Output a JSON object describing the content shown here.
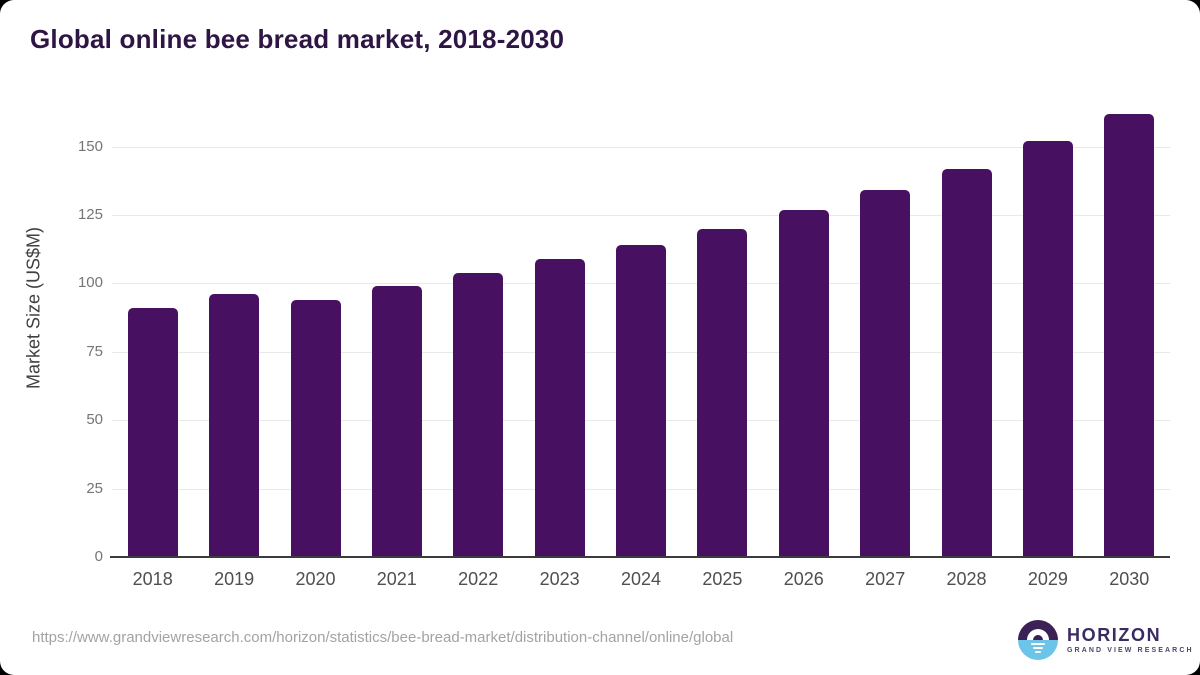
{
  "header": {
    "title": "Global online bee bread market, 2018-2030"
  },
  "chart_data": {
    "type": "bar",
    "title": "Global online bee bread market, 2018-2030",
    "categories": [
      "2018",
      "2019",
      "2020",
      "2021",
      "2022",
      "2023",
      "2024",
      "2025",
      "2026",
      "2027",
      "2028",
      "2029",
      "2030"
    ],
    "values": [
      91,
      96,
      94,
      99,
      104,
      109,
      114,
      120,
      127,
      134,
      142,
      152,
      162
    ],
    "xlabel": "",
    "ylabel": "Market Size (US$M)",
    "ylim": [
      0,
      166
    ],
    "yticks": [
      0,
      25,
      50,
      75,
      100,
      125,
      150
    ],
    "grid": true,
    "legend": false,
    "bar_corner_radius": "rounded-top"
  },
  "footer": {
    "source_url": "https://www.grandviewresearch.com/horizon/statistics/bee-bread-market/distribution-channel/online/global",
    "logo": {
      "name": "HORIZON",
      "tagline": "GRAND VIEW RESEARCH",
      "icon": "sunrise-over-water-icon"
    }
  },
  "colors": {
    "bar": "#481061",
    "title": "#2e1543",
    "axis_line": "#3b3b3b",
    "gridline": "#e9e9e9",
    "tick_label": "#757575",
    "x_label": "#4f4f4f",
    "y_axis_title": "#404040",
    "url_text": "#a3a3a3",
    "logo_purple": "#3b2155",
    "logo_blue": "#6cc4e8",
    "logo_text": "#3b2b63",
    "logo_tagline": "#4c4569",
    "card_background": "#ffffff",
    "outer_background": "#000000"
  }
}
